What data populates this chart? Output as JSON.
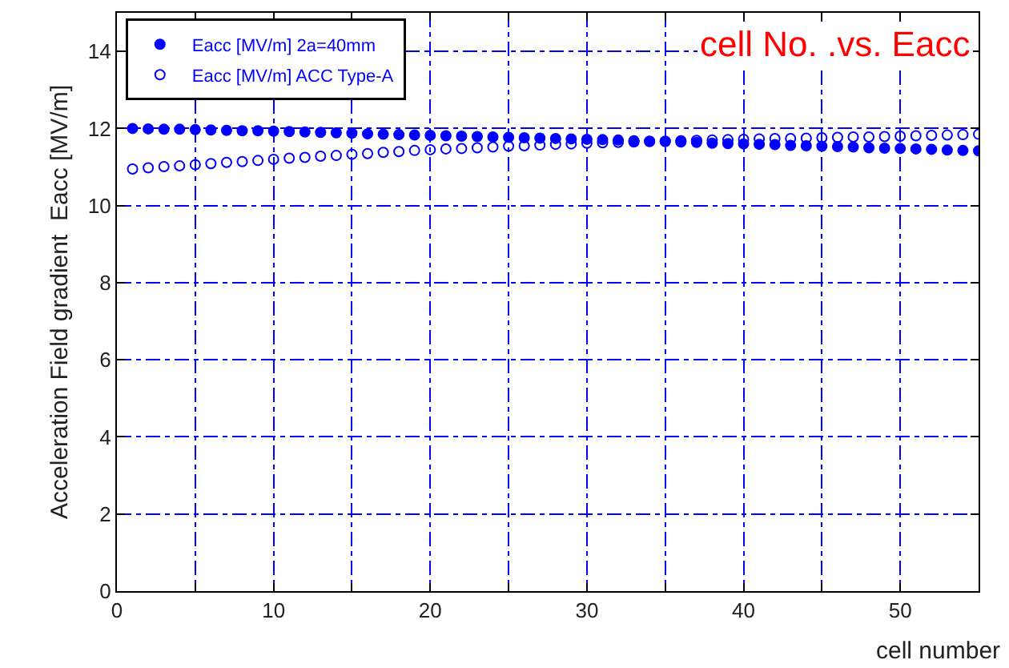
{
  "chart_data": {
    "type": "scatter",
    "title": "cell No. .vs. Eacc",
    "xlabel": "cell number",
    "ylabel": "Acceleration Field gradient  Eacc [MV/m]",
    "x": [
      1,
      2,
      3,
      4,
      5,
      6,
      7,
      8,
      9,
      10,
      11,
      12,
      13,
      14,
      15,
      16,
      17,
      18,
      19,
      20,
      21,
      22,
      23,
      24,
      25,
      26,
      27,
      28,
      29,
      30,
      31,
      32,
      33,
      34,
      35,
      36,
      37,
      38,
      39,
      40,
      41,
      42,
      43,
      44,
      45,
      46,
      47,
      48,
      49,
      50,
      51,
      52,
      53,
      54,
      55
    ],
    "series": [
      {
        "name": "Eacc [MV/m] 2a=40mm",
        "color": "#0000ff",
        "values": [
          12.0,
          11.99,
          11.98,
          11.98,
          11.97,
          11.96,
          11.95,
          11.94,
          11.94,
          11.93,
          11.92,
          11.91,
          11.9,
          11.89,
          11.88,
          11.86,
          11.85,
          11.84,
          11.83,
          11.82,
          11.81,
          11.8,
          11.79,
          11.78,
          11.77,
          11.76,
          11.75,
          11.74,
          11.73,
          11.72,
          11.71,
          11.7,
          11.68,
          11.67,
          11.66,
          11.65,
          11.64,
          11.62,
          11.61,
          11.6,
          11.59,
          11.58,
          11.56,
          11.55,
          11.54,
          11.53,
          11.52,
          11.5,
          11.49,
          11.48,
          11.47,
          11.46,
          11.44,
          11.43,
          11.42
        ]
      },
      {
        "name": "Eacc [MV/m] ACC Type-A",
        "color": "#0000ff",
        "values": [
          10.95,
          10.98,
          11.01,
          11.03,
          11.06,
          11.09,
          11.12,
          11.14,
          11.17,
          11.2,
          11.23,
          11.25,
          11.28,
          11.3,
          11.33,
          11.35,
          11.38,
          11.4,
          11.43,
          11.45,
          11.47,
          11.48,
          11.5,
          11.52,
          11.54,
          11.55,
          11.57,
          11.59,
          11.6,
          11.62,
          11.63,
          11.64,
          11.65,
          11.66,
          11.67,
          11.68,
          11.69,
          11.7,
          11.71,
          11.72,
          11.73,
          11.74,
          11.74,
          11.75,
          11.76,
          11.77,
          11.78,
          11.78,
          11.79,
          11.8,
          11.81,
          11.82,
          11.83,
          11.84,
          11.85
        ]
      }
    ],
    "xlim": [
      0,
      55
    ],
    "xticks": [
      0,
      {
        "value": 5,
        "label": null
      },
      10,
      {
        "value": 15,
        "label": null
      },
      20,
      {
        "value": 25,
        "label": null
      },
      30,
      {
        "value": 35,
        "label": null
      },
      40,
      {
        "value": 45,
        "label": null
      },
      50
    ],
    "ylim": [
      0,
      15
    ],
    "yticks": [
      0,
      2,
      4,
      6,
      8,
      10,
      12,
      14
    ],
    "grid": true,
    "legend": "top left",
    "marker": "circle"
  }
}
